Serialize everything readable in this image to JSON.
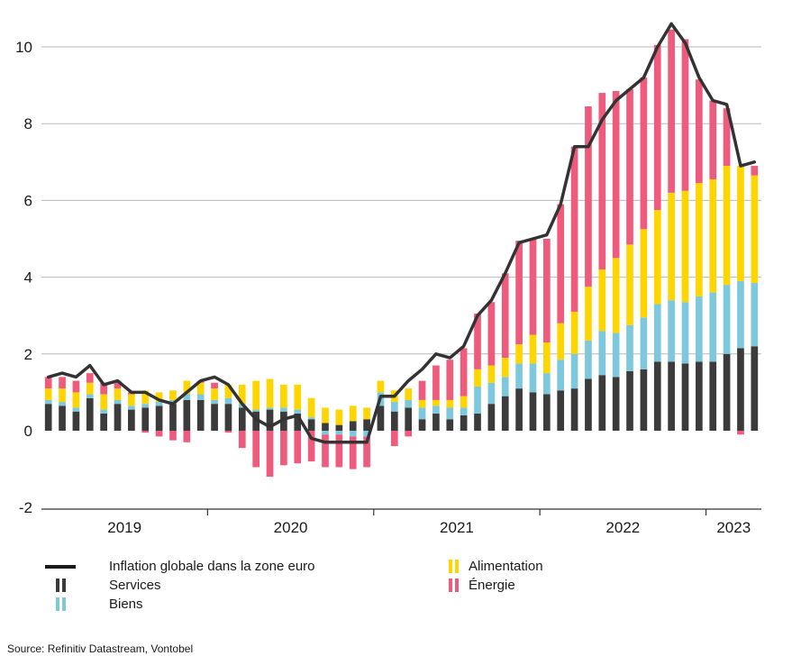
{
  "chart_data": {
    "type": "bar",
    "stacked": true,
    "ylim": [
      -2,
      11
    ],
    "yticks": [
      -2,
      0,
      2,
      4,
      6,
      8,
      10
    ],
    "x_labels": [
      "2019",
      "2020",
      "2021",
      "2022",
      "2023"
    ],
    "grid": "horizontal",
    "legend_placement": "bottom",
    "series": [
      {
        "name": "Services",
        "color": "#3b3b3b",
        "values": [
          0.7,
          0.65,
          0.5,
          0.85,
          0.45,
          0.7,
          0.55,
          0.6,
          0.65,
          0.7,
          0.8,
          0.8,
          0.7,
          0.7,
          0.6,
          0.5,
          0.55,
          0.5,
          0.45,
          0.3,
          0.2,
          0.15,
          0.25,
          0.3,
          0.65,
          0.5,
          0.6,
          0.3,
          0.45,
          0.3,
          0.4,
          0.45,
          0.7,
          0.9,
          1.1,
          1.0,
          0.95,
          1.05,
          1.1,
          1.35,
          1.45,
          1.4,
          1.55,
          1.6,
          1.8,
          1.8,
          1.75,
          1.8,
          1.8,
          2.0,
          2.15,
          2.2
        ]
      },
      {
        "name": "Biens",
        "color": "#7ec8de",
        "values": [
          0.1,
          0.1,
          0.1,
          0.1,
          0.1,
          0.1,
          0.1,
          0.1,
          0.1,
          0.1,
          0.15,
          0.15,
          0.1,
          0.15,
          0.1,
          0.05,
          0.05,
          0.1,
          0.1,
          0.05,
          -0.1,
          -0.1,
          -0.15,
          -0.15,
          0.35,
          0.25,
          0.2,
          0.3,
          0.2,
          0.3,
          0.2,
          0.7,
          0.55,
          0.5,
          0.65,
          0.75,
          0.55,
          0.8,
          0.9,
          1.0,
          1.15,
          1.15,
          1.2,
          1.35,
          1.5,
          1.6,
          1.6,
          1.7,
          1.8,
          1.8,
          1.75,
          1.65
        ]
      },
      {
        "name": "Alimentation",
        "color": "#ffd500",
        "values": [
          0.3,
          0.35,
          0.4,
          0.3,
          0.4,
          0.3,
          0.3,
          0.35,
          0.25,
          0.25,
          0.35,
          0.3,
          0.3,
          0.35,
          0.5,
          0.75,
          0.75,
          0.6,
          0.65,
          0.5,
          0.4,
          0.4,
          0.4,
          0.3,
          0.3,
          0.3,
          0.3,
          0.2,
          0.15,
          0.2,
          0.3,
          0.45,
          0.45,
          0.5,
          0.5,
          0.75,
          0.8,
          0.95,
          1.1,
          1.4,
          1.6,
          1.95,
          2.1,
          2.3,
          2.45,
          2.8,
          2.9,
          2.95,
          2.95,
          3.1,
          3.0,
          2.8
        ]
      },
      {
        "name": "Énergie",
        "color": "#ef5b7d",
        "values": [
          0.3,
          0.3,
          0.3,
          0.25,
          0.3,
          0.2,
          0.05,
          -0.05,
          -0.15,
          -0.25,
          -0.3,
          0.05,
          0.15,
          -0.05,
          -0.45,
          -0.95,
          -1.2,
          -0.9,
          -0.85,
          -0.8,
          -0.85,
          -0.85,
          -0.85,
          -0.8,
          0.0,
          -0.4,
          -0.15,
          0.5,
          0.9,
          1.05,
          1.25,
          1.45,
          1.65,
          2.2,
          2.7,
          2.5,
          2.7,
          3.1,
          4.3,
          4.7,
          4.6,
          4.35,
          4.05,
          3.95,
          4.3,
          4.25,
          3.95,
          2.7,
          2.05,
          1.5,
          -0.1,
          0.25
        ]
      }
    ],
    "line": {
      "name": "Inflation globale dans la zone euro",
      "color": "#333333",
      "values": [
        1.4,
        1.5,
        1.4,
        1.7,
        1.2,
        1.3,
        1.0,
        1.0,
        0.8,
        0.7,
        1.0,
        1.3,
        1.4,
        1.2,
        0.7,
        0.3,
        0.1,
        0.3,
        0.4,
        -0.2,
        -0.3,
        -0.3,
        -0.3,
        -0.3,
        0.9,
        0.9,
        1.3,
        1.6,
        2.0,
        1.9,
        2.2,
        3.0,
        3.4,
        4.1,
        4.9,
        5.0,
        5.1,
        5.9,
        7.4,
        7.4,
        8.1,
        8.6,
        8.9,
        9.2,
        10.0,
        10.6,
        10.1,
        9.2,
        8.6,
        8.5,
        6.9,
        7.0
      ]
    }
  },
  "legend": {
    "items": [
      {
        "key": "line",
        "label": "Inflation globale dans la zone euro"
      },
      {
        "key": "services",
        "label": "Services"
      },
      {
        "key": "biens",
        "label": "Biens"
      },
      {
        "key": "alimentation",
        "label": "Alimentation"
      },
      {
        "key": "energie",
        "label": "Énergie"
      }
    ]
  },
  "source": "Source: Refinitiv Datastream, Vontobel"
}
